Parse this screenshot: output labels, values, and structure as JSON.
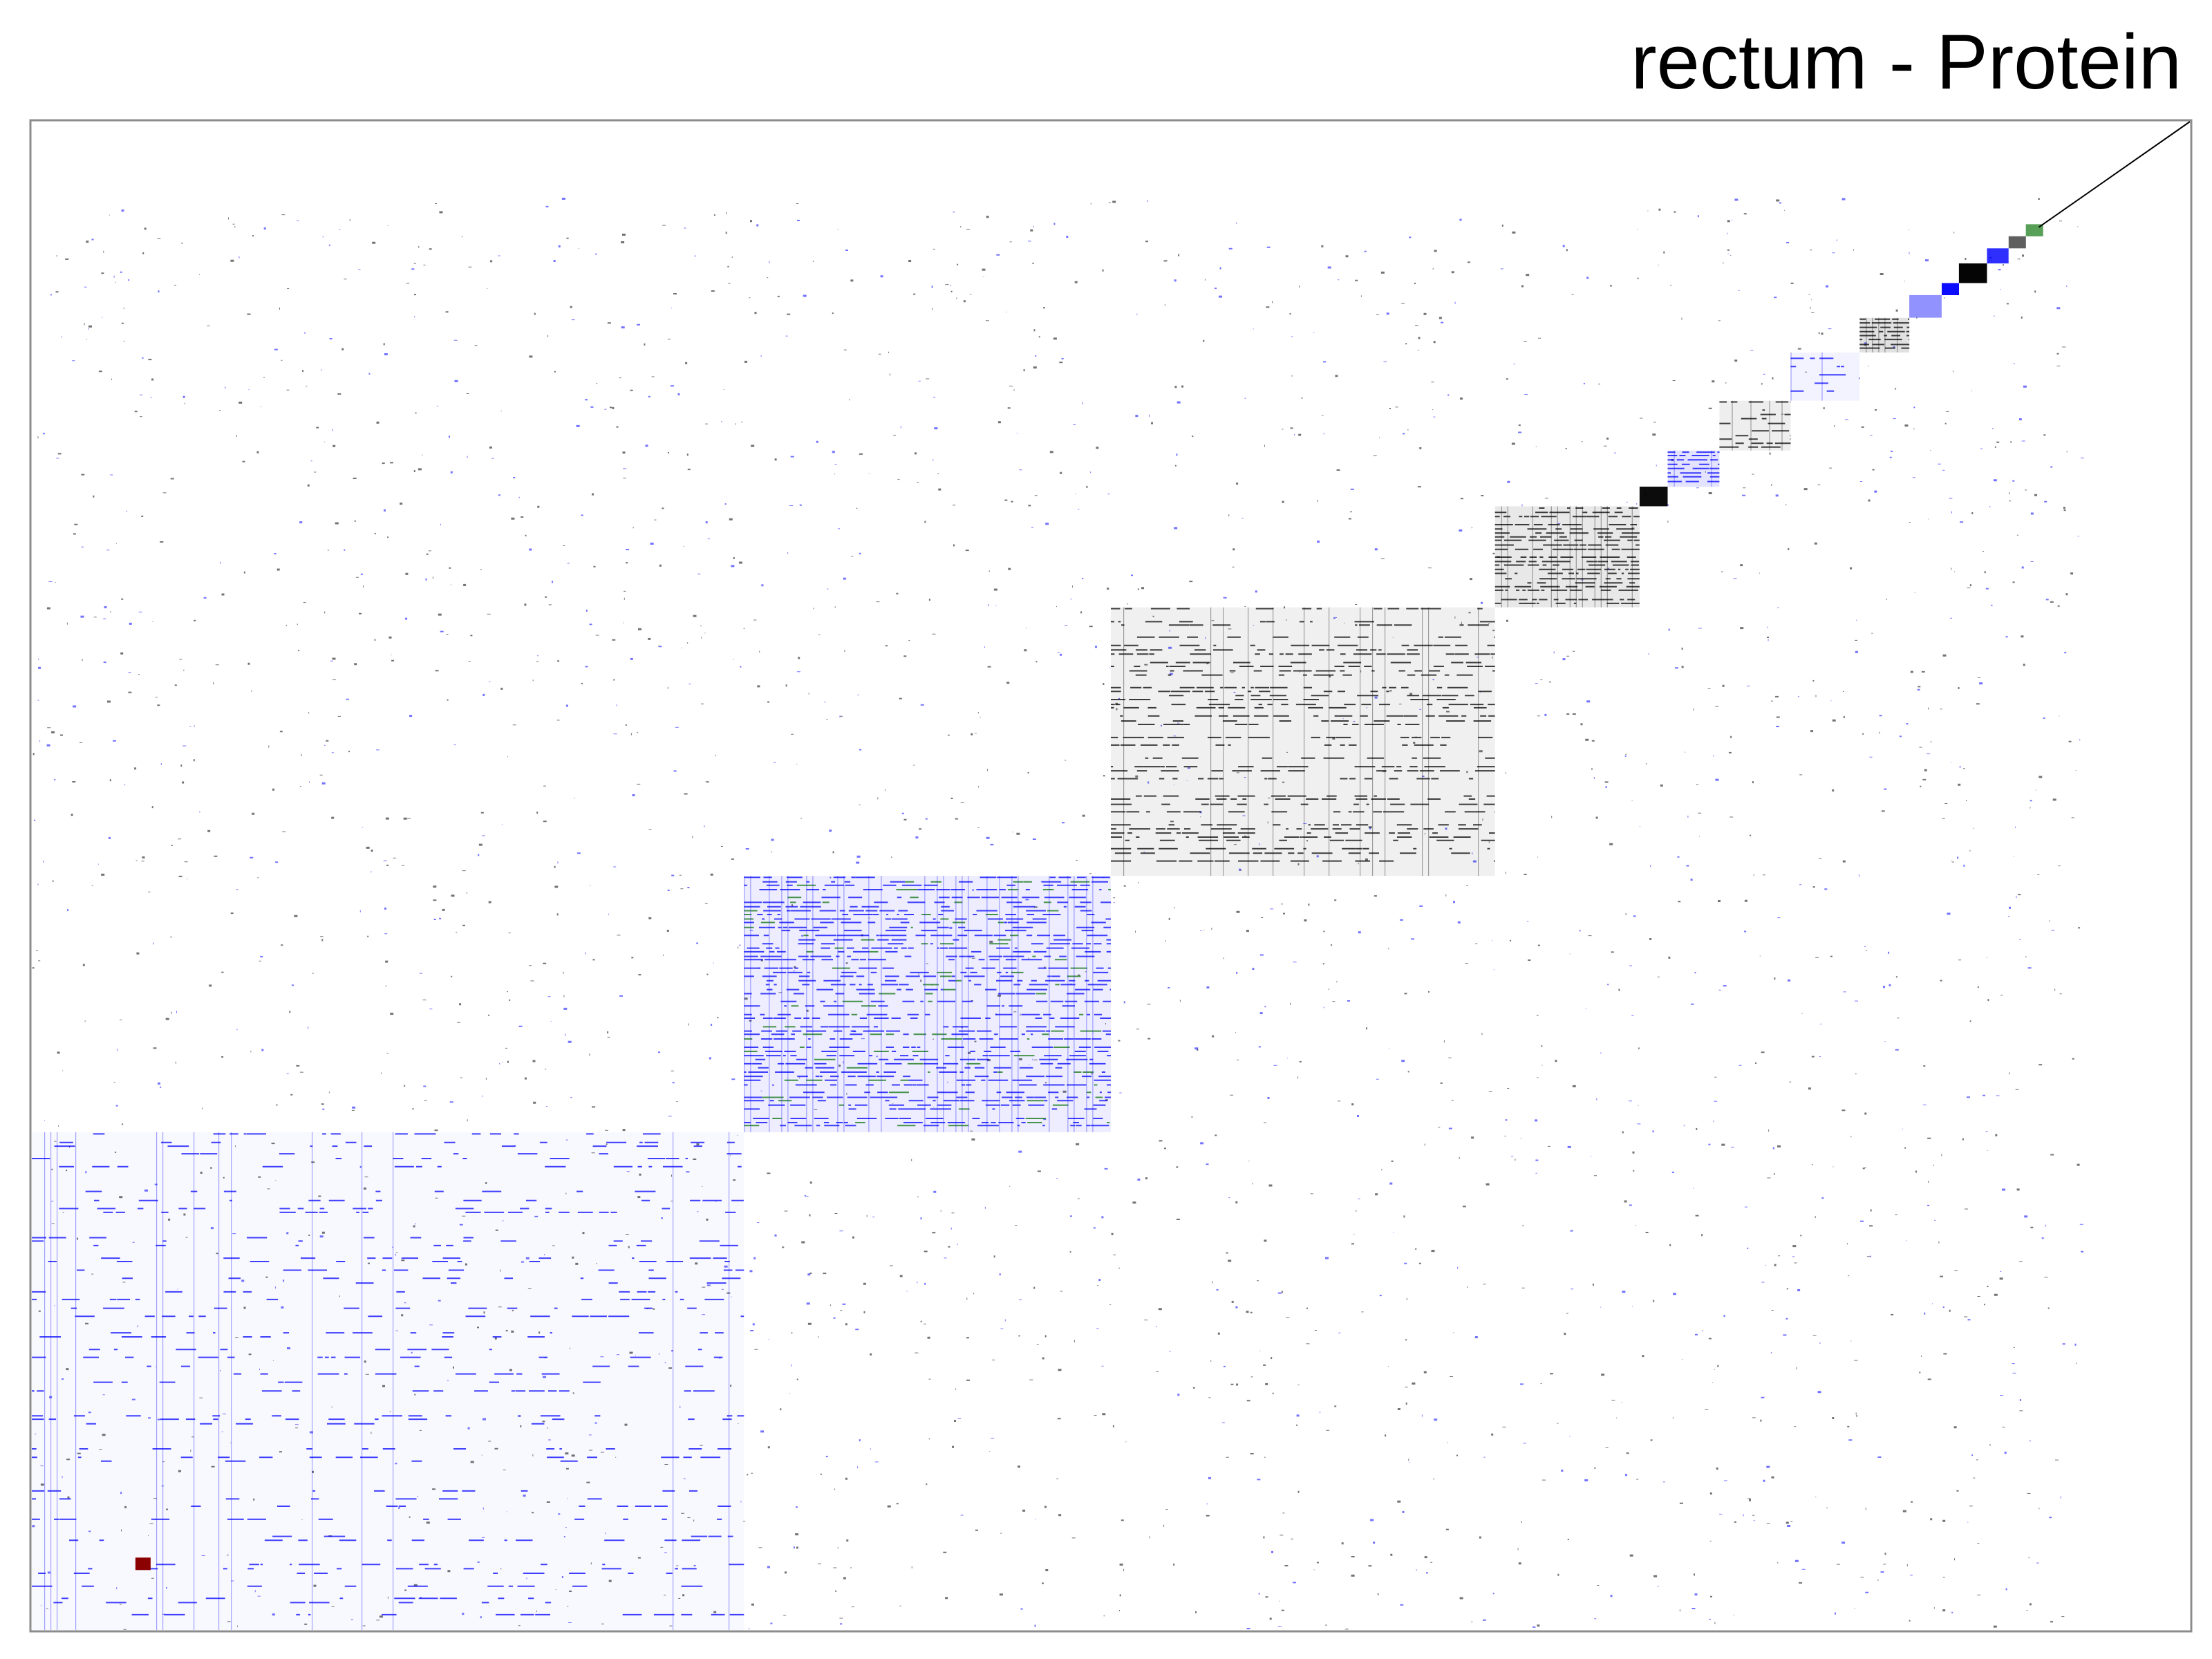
{
  "chart_data": {
    "type": "heatmap",
    "title": "rectum - Protein",
    "xlabel": "",
    "ylabel": "",
    "grid": false,
    "legend": "none",
    "colors": {
      "black": "#000000",
      "blue": "#0000ff",
      "green": "#1a7a1a",
      "red": "#8b0000",
      "frame": "#8c8c8c",
      "background": "#ffffff"
    },
    "blocks": [
      {
        "name": "cluster-1",
        "start": 0.0,
        "end": 0.33,
        "density": 0.22,
        "color": "blue"
      },
      {
        "name": "cluster-2",
        "start": 0.33,
        "end": 0.5,
        "density": 0.6,
        "color": "blue"
      },
      {
        "name": "cluster-3",
        "start": 0.5,
        "end": 0.678,
        "density": 0.5,
        "color": "black"
      },
      {
        "name": "cluster-4",
        "start": 0.678,
        "end": 0.745,
        "density": 0.75,
        "color": "black"
      },
      {
        "name": "cluster-5",
        "start": 0.745,
        "end": 0.758,
        "density": 0.95,
        "color": "black"
      },
      {
        "name": "cluster-6",
        "start": 0.758,
        "end": 0.782,
        "density": 0.9,
        "color": "blue"
      },
      {
        "name": "cluster-7",
        "start": 0.782,
        "end": 0.815,
        "density": 0.55,
        "color": "black"
      },
      {
        "name": "cluster-8",
        "start": 0.815,
        "end": 0.847,
        "density": 0.4,
        "color": "blue"
      },
      {
        "name": "cluster-9",
        "start": 0.847,
        "end": 0.87,
        "density": 0.97,
        "color": "black"
      },
      {
        "name": "cluster-10",
        "start": 0.87,
        "end": 0.885,
        "density": 0.4,
        "color": "blue"
      },
      {
        "name": "cluster-11",
        "start": 0.885,
        "end": 0.893,
        "density": 0.95,
        "color": "blue"
      },
      {
        "name": "cluster-12",
        "start": 0.893,
        "end": 0.906,
        "density": 0.98,
        "color": "black"
      },
      {
        "name": "cluster-13",
        "start": 0.906,
        "end": 0.916,
        "density": 0.8,
        "color": "blue"
      },
      {
        "name": "cluster-14",
        "start": 0.916,
        "end": 0.924,
        "density": 0.6,
        "color": "black"
      },
      {
        "name": "cluster-15",
        "start": 0.924,
        "end": 0.932,
        "density": 0.7,
        "color": "green"
      }
    ]
  }
}
